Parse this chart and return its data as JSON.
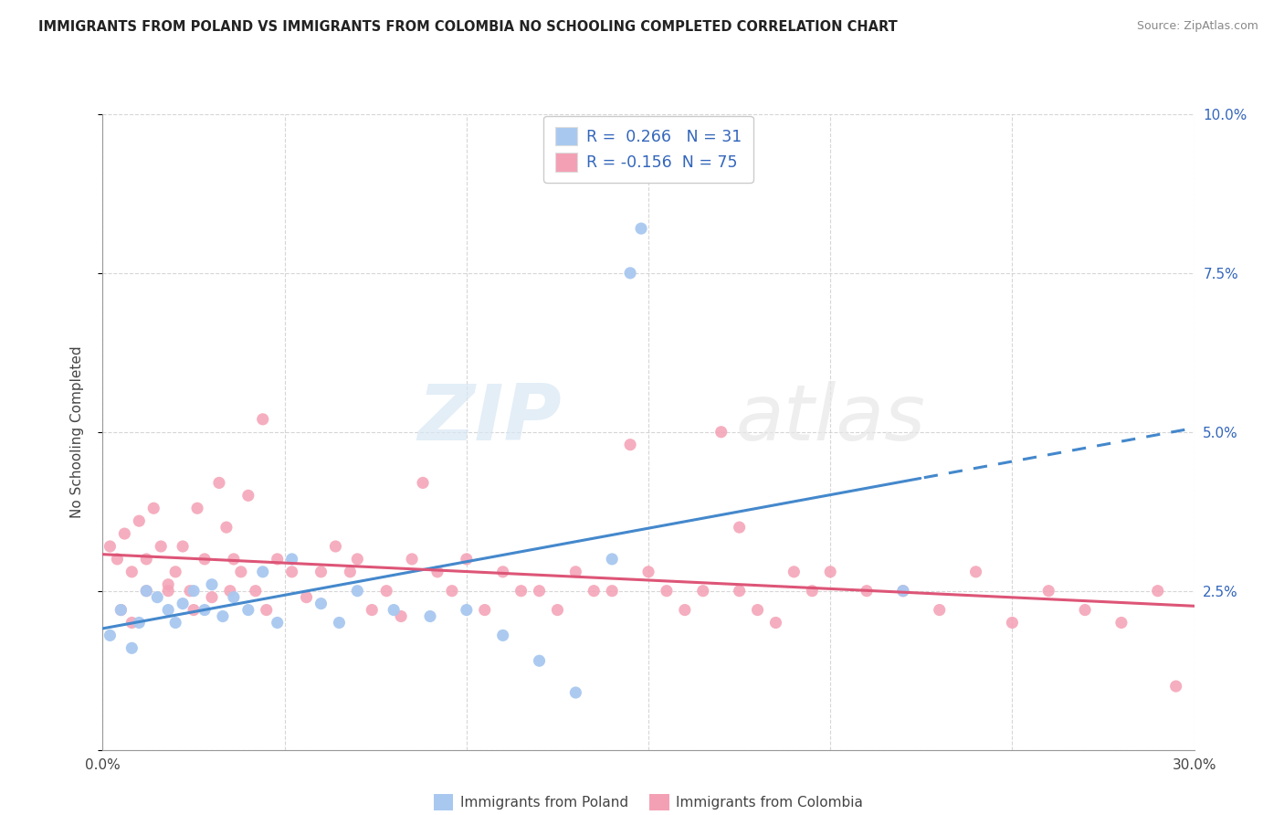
{
  "title": "IMMIGRANTS FROM POLAND VS IMMIGRANTS FROM COLOMBIA NO SCHOOLING COMPLETED CORRELATION CHART",
  "source": "Source: ZipAtlas.com",
  "ylabel": "No Schooling Completed",
  "xlim": [
    0.0,
    0.3
  ],
  "ylim": [
    0.0,
    0.1
  ],
  "poland_color": "#a8c8f0",
  "colombia_color": "#f4a0b4",
  "poland_line_color": "#4488cc",
  "colombia_line_color": "#dd5577",
  "R_poland": 0.266,
  "N_poland": 31,
  "R_colombia": -0.156,
  "N_colombia": 75,
  "legend_text_color": "#3366bb",
  "background_color": "#ffffff",
  "grid_color": "#cccccc",
  "watermark": "ZIPatlas",
  "poland_scatter_x": [
    0.002,
    0.005,
    0.008,
    0.01,
    0.012,
    0.015,
    0.018,
    0.02,
    0.022,
    0.025,
    0.028,
    0.03,
    0.033,
    0.036,
    0.04,
    0.044,
    0.048,
    0.052,
    0.06,
    0.065,
    0.07,
    0.08,
    0.09,
    0.1,
    0.11,
    0.12,
    0.13,
    0.14,
    0.145,
    0.148,
    0.22
  ],
  "poland_scatter_y": [
    0.018,
    0.022,
    0.016,
    0.02,
    0.025,
    0.024,
    0.022,
    0.02,
    0.023,
    0.025,
    0.022,
    0.026,
    0.021,
    0.024,
    0.022,
    0.028,
    0.02,
    0.03,
    0.023,
    0.02,
    0.025,
    0.022,
    0.021,
    0.022,
    0.018,
    0.014,
    0.009,
    0.03,
    0.075,
    0.082,
    0.025
  ],
  "colombia_scatter_x": [
    0.002,
    0.004,
    0.006,
    0.008,
    0.01,
    0.012,
    0.014,
    0.016,
    0.018,
    0.02,
    0.022,
    0.024,
    0.026,
    0.028,
    0.03,
    0.032,
    0.034,
    0.036,
    0.038,
    0.04,
    0.042,
    0.044,
    0.048,
    0.052,
    0.056,
    0.06,
    0.064,
    0.068,
    0.07,
    0.074,
    0.078,
    0.082,
    0.085,
    0.088,
    0.092,
    0.096,
    0.1,
    0.105,
    0.11,
    0.115,
    0.12,
    0.125,
    0.13,
    0.135,
    0.14,
    0.145,
    0.15,
    0.155,
    0.16,
    0.165,
    0.17,
    0.175,
    0.18,
    0.185,
    0.19,
    0.195,
    0.2,
    0.21,
    0.22,
    0.23,
    0.24,
    0.25,
    0.26,
    0.27,
    0.28,
    0.29,
    0.295,
    0.175,
    0.005,
    0.008,
    0.012,
    0.018,
    0.025,
    0.035,
    0.045
  ],
  "colombia_scatter_y": [
    0.032,
    0.03,
    0.034,
    0.028,
    0.036,
    0.03,
    0.038,
    0.032,
    0.026,
    0.028,
    0.032,
    0.025,
    0.038,
    0.03,
    0.024,
    0.042,
    0.035,
    0.03,
    0.028,
    0.04,
    0.025,
    0.052,
    0.03,
    0.028,
    0.024,
    0.028,
    0.032,
    0.028,
    0.03,
    0.022,
    0.025,
    0.021,
    0.03,
    0.042,
    0.028,
    0.025,
    0.03,
    0.022,
    0.028,
    0.025,
    0.025,
    0.022,
    0.028,
    0.025,
    0.025,
    0.048,
    0.028,
    0.025,
    0.022,
    0.025,
    0.05,
    0.025,
    0.022,
    0.02,
    0.028,
    0.025,
    0.028,
    0.025,
    0.025,
    0.022,
    0.028,
    0.02,
    0.025,
    0.022,
    0.02,
    0.025,
    0.01,
    0.035,
    0.022,
    0.02,
    0.025,
    0.025,
    0.022,
    0.025,
    0.022
  ]
}
